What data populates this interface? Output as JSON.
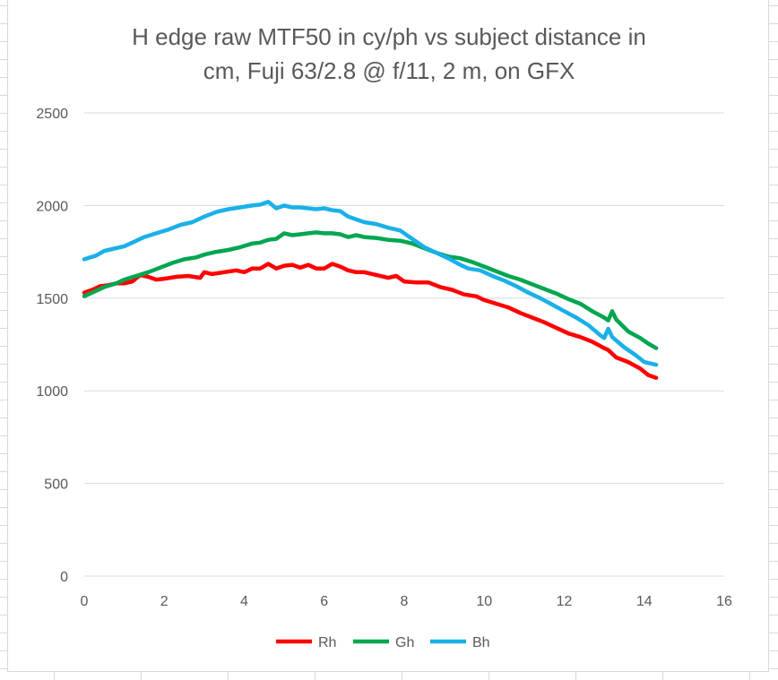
{
  "chart_data": {
    "type": "line",
    "title_lines": [
      "H edge raw MTF50 in cy/ph vs subject distance in",
      "cm, Fuji 63/2.8 @ f/11, 2 m, on GFX"
    ],
    "xlabel": "",
    "ylabel": "",
    "xlim": [
      0,
      16
    ],
    "ylim": [
      0,
      2500
    ],
    "x_ticks": [
      "0",
      "2",
      "4",
      "6",
      "8",
      "10",
      "12",
      "14",
      "16"
    ],
    "y_ticks": [
      "0",
      "500",
      "1000",
      "1500",
      "2000",
      "2500"
    ],
    "grid": "horizontal",
    "legend_position": "bottom",
    "series": [
      {
        "name": "Rh",
        "color": "#ff0000",
        "points": [
          [
            0,
            1530
          ],
          [
            0.2,
            1545
          ],
          [
            0.4,
            1565
          ],
          [
            0.6,
            1570
          ],
          [
            0.8,
            1580
          ],
          [
            1.0,
            1580
          ],
          [
            1.2,
            1590
          ],
          [
            1.4,
            1625
          ],
          [
            1.6,
            1615
          ],
          [
            1.8,
            1600
          ],
          [
            2.0,
            1605
          ],
          [
            2.3,
            1615
          ],
          [
            2.6,
            1620
          ],
          [
            2.9,
            1610
          ],
          [
            3.0,
            1640
          ],
          [
            3.2,
            1630
          ],
          [
            3.5,
            1640
          ],
          [
            3.8,
            1650
          ],
          [
            4.0,
            1640
          ],
          [
            4.2,
            1660
          ],
          [
            4.4,
            1660
          ],
          [
            4.6,
            1685
          ],
          [
            4.8,
            1660
          ],
          [
            5.0,
            1675
          ],
          [
            5.2,
            1680
          ],
          [
            5.4,
            1665
          ],
          [
            5.6,
            1680
          ],
          [
            5.8,
            1660
          ],
          [
            6.0,
            1660
          ],
          [
            6.2,
            1685
          ],
          [
            6.4,
            1670
          ],
          [
            6.6,
            1650
          ],
          [
            6.8,
            1640
          ],
          [
            7.0,
            1640
          ],
          [
            7.3,
            1625
          ],
          [
            7.6,
            1610
          ],
          [
            7.8,
            1620
          ],
          [
            8.0,
            1590
          ],
          [
            8.3,
            1585
          ],
          [
            8.6,
            1585
          ],
          [
            8.9,
            1560
          ],
          [
            9.2,
            1545
          ],
          [
            9.5,
            1520
          ],
          [
            9.8,
            1510
          ],
          [
            10.0,
            1490
          ],
          [
            10.3,
            1470
          ],
          [
            10.6,
            1450
          ],
          [
            10.9,
            1420
          ],
          [
            11.2,
            1395
          ],
          [
            11.5,
            1370
          ],
          [
            11.8,
            1340
          ],
          [
            12.1,
            1310
          ],
          [
            12.4,
            1290
          ],
          [
            12.7,
            1265
          ],
          [
            13.0,
            1230
          ],
          [
            13.1,
            1220
          ],
          [
            13.3,
            1180
          ],
          [
            13.6,
            1155
          ],
          [
            13.9,
            1120
          ],
          [
            14.1,
            1085
          ],
          [
            14.3,
            1070
          ]
        ]
      },
      {
        "name": "Gh",
        "color": "#00a650",
        "points": [
          [
            0,
            1510
          ],
          [
            0.2,
            1530
          ],
          [
            0.5,
            1560
          ],
          [
            0.8,
            1580
          ],
          [
            1.0,
            1600
          ],
          [
            1.3,
            1620
          ],
          [
            1.6,
            1640
          ],
          [
            1.9,
            1665
          ],
          [
            2.2,
            1690
          ],
          [
            2.5,
            1710
          ],
          [
            2.8,
            1720
          ],
          [
            3.0,
            1735
          ],
          [
            3.3,
            1750
          ],
          [
            3.6,
            1760
          ],
          [
            3.9,
            1775
          ],
          [
            4.2,
            1795
          ],
          [
            4.4,
            1800
          ],
          [
            4.6,
            1815
          ],
          [
            4.8,
            1820
          ],
          [
            5.0,
            1850
          ],
          [
            5.2,
            1840
          ],
          [
            5.4,
            1845
          ],
          [
            5.6,
            1850
          ],
          [
            5.8,
            1855
          ],
          [
            6.0,
            1850
          ],
          [
            6.2,
            1850
          ],
          [
            6.4,
            1845
          ],
          [
            6.6,
            1830
          ],
          [
            6.8,
            1840
          ],
          [
            7.0,
            1830
          ],
          [
            7.3,
            1825
          ],
          [
            7.6,
            1815
          ],
          [
            7.9,
            1810
          ],
          [
            8.2,
            1795
          ],
          [
            8.5,
            1770
          ],
          [
            8.8,
            1745
          ],
          [
            9.1,
            1725
          ],
          [
            9.4,
            1715
          ],
          [
            9.7,
            1695
          ],
          [
            10.0,
            1670
          ],
          [
            10.3,
            1645
          ],
          [
            10.6,
            1620
          ],
          [
            10.9,
            1600
          ],
          [
            11.2,
            1575
          ],
          [
            11.5,
            1550
          ],
          [
            11.8,
            1525
          ],
          [
            12.1,
            1495
          ],
          [
            12.4,
            1470
          ],
          [
            12.7,
            1430
          ],
          [
            13.0,
            1395
          ],
          [
            13.1,
            1380
          ],
          [
            13.2,
            1430
          ],
          [
            13.3,
            1385
          ],
          [
            13.6,
            1320
          ],
          [
            13.9,
            1285
          ],
          [
            14.1,
            1255
          ],
          [
            14.3,
            1230
          ]
        ]
      },
      {
        "name": "Bh",
        "color": "#1ab0e8",
        "points": [
          [
            0,
            1710
          ],
          [
            0.3,
            1730
          ],
          [
            0.5,
            1755
          ],
          [
            0.7,
            1765
          ],
          [
            1.0,
            1780
          ],
          [
            1.2,
            1800
          ],
          [
            1.5,
            1830
          ],
          [
            1.8,
            1850
          ],
          [
            2.1,
            1870
          ],
          [
            2.4,
            1895
          ],
          [
            2.7,
            1910
          ],
          [
            3.0,
            1940
          ],
          [
            3.3,
            1965
          ],
          [
            3.6,
            1980
          ],
          [
            3.9,
            1990
          ],
          [
            4.2,
            2000
          ],
          [
            4.4,
            2005
          ],
          [
            4.6,
            2020
          ],
          [
            4.8,
            1985
          ],
          [
            5.0,
            2000
          ],
          [
            5.2,
            1990
          ],
          [
            5.4,
            1990
          ],
          [
            5.6,
            1985
          ],
          [
            5.8,
            1980
          ],
          [
            6.0,
            1985
          ],
          [
            6.2,
            1975
          ],
          [
            6.4,
            1970
          ],
          [
            6.6,
            1940
          ],
          [
            6.8,
            1925
          ],
          [
            7.0,
            1910
          ],
          [
            7.3,
            1900
          ],
          [
            7.6,
            1880
          ],
          [
            7.9,
            1865
          ],
          [
            8.2,
            1820
          ],
          [
            8.5,
            1775
          ],
          [
            8.8,
            1745
          ],
          [
            9.1,
            1715
          ],
          [
            9.4,
            1680
          ],
          [
            9.6,
            1660
          ],
          [
            9.9,
            1650
          ],
          [
            10.2,
            1620
          ],
          [
            10.5,
            1595
          ],
          [
            10.8,
            1565
          ],
          [
            11.1,
            1530
          ],
          [
            11.4,
            1500
          ],
          [
            11.7,
            1465
          ],
          [
            12.0,
            1430
          ],
          [
            12.3,
            1395
          ],
          [
            12.6,
            1355
          ],
          [
            12.9,
            1300
          ],
          [
            13.0,
            1285
          ],
          [
            13.1,
            1335
          ],
          [
            13.2,
            1290
          ],
          [
            13.5,
            1235
          ],
          [
            13.8,
            1190
          ],
          [
            14.0,
            1155
          ],
          [
            14.3,
            1140
          ]
        ]
      }
    ]
  }
}
